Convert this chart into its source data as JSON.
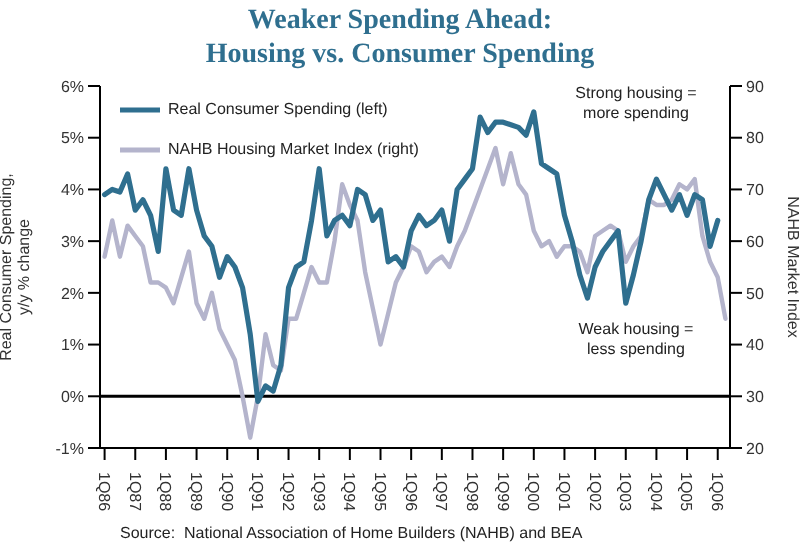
{
  "chart_data": {
    "type": "line",
    "title": "Weaker Spending Ahead:\nHousing vs. Consumer Spending",
    "ylabel": "Real Consumer Spending,\ny/y % change",
    "y2label": "NAHB Market Index",
    "categories": [
      "1Q86",
      null,
      null,
      null,
      "1Q87",
      null,
      null,
      null,
      "1Q88",
      null,
      null,
      null,
      "1Q89",
      null,
      null,
      null,
      "1Q90",
      null,
      null,
      null,
      "1Q91",
      null,
      null,
      null,
      "1Q92",
      null,
      null,
      null,
      "1Q93",
      null,
      null,
      null,
      "1Q94",
      null,
      null,
      null,
      "1Q95",
      null,
      null,
      null,
      "1Q96",
      null,
      null,
      null,
      "1Q97",
      null,
      null,
      null,
      "1Q98",
      null,
      null,
      null,
      "1Q99",
      null,
      null,
      null,
      "1Q00",
      null,
      null,
      null,
      "1Q01",
      null,
      null,
      null,
      "1Q02",
      null,
      null,
      null,
      "1Q03",
      null,
      null,
      null,
      "1Q04",
      null,
      null,
      null,
      "1Q05",
      null,
      null,
      null,
      "1Q06",
      null
    ],
    "ylim": [
      -1,
      6
    ],
    "yticks": [
      {
        "value": -1,
        "label": "-1%"
      },
      {
        "value": 0,
        "label": "0%"
      },
      {
        "value": 1,
        "label": "1%"
      },
      {
        "value": 2,
        "label": "2%"
      },
      {
        "value": 3,
        "label": "3%"
      },
      {
        "value": 4,
        "label": "4%"
      },
      {
        "value": 5,
        "label": "5%"
      },
      {
        "value": 6,
        "label": "6%"
      }
    ],
    "y2lim": [
      20,
      90
    ],
    "y2ticks": [
      20,
      30,
      40,
      50,
      60,
      70,
      80,
      90
    ],
    "legend": "top left",
    "ref_lines": [
      {
        "axis": "y",
        "value": 0,
        "color": "#000000"
      }
    ],
    "annotations": [
      "Strong housing =\nmore spending",
      "Weak housing =\nless spending",
      "Source:  National Association of Home Builders (NAHB) and BEA"
    ],
    "series": [
      {
        "name": "Real Consumer Spending (left)",
        "color": "#2f6f8f",
        "values": [
          3.9,
          4.0,
          3.95,
          4.3,
          3.6,
          3.8,
          3.5,
          2.8,
          4.4,
          3.6,
          3.5,
          4.4,
          3.6,
          3.1,
          2.9,
          2.3,
          2.7,
          2.5,
          2.1,
          1.2,
          -0.1,
          0.2,
          0.1,
          0.6,
          2.1,
          2.5,
          2.6,
          3.4,
          4.4,
          3.1,
          3.4,
          3.5,
          3.3,
          4.0,
          3.9,
          3.4,
          3.6,
          2.6,
          2.7,
          2.5,
          3.2,
          3.5,
          3.3,
          3.4,
          3.6,
          3.0,
          4.0,
          4.2,
          4.4,
          5.4,
          5.1,
          5.3,
          5.3,
          5.25,
          5.2,
          5.05,
          5.5,
          4.5,
          4.4,
          4.3,
          3.5,
          3.0,
          2.35,
          1.9,
          2.5,
          2.8,
          3.0,
          3.2,
          1.8,
          2.35,
          3.0,
          3.8,
          4.2,
          3.9,
          3.6,
          3.9,
          3.5,
          3.9,
          3.8,
          2.9,
          3.4,
          null
        ]
      },
      {
        "name": "NAHB Housing Market Index (right)",
        "color": "#b4b4cc",
        "axis": "y2",
        "values": [
          57,
          64,
          57,
          63,
          61,
          59,
          52,
          52,
          51,
          48,
          53,
          58,
          48,
          45,
          50,
          43,
          40,
          37,
          30,
          22,
          30,
          42,
          36,
          35,
          45,
          45,
          50,
          55,
          52,
          52,
          60,
          71,
          67,
          64,
          54,
          47,
          40,
          46,
          52,
          55,
          59,
          58,
          54,
          56,
          57,
          55,
          59,
          62,
          66,
          70,
          74,
          78,
          71,
          77,
          71,
          69,
          62,
          59,
          60,
          57,
          59,
          59,
          58,
          54,
          61,
          62,
          63,
          62,
          56,
          59,
          61,
          68,
          67,
          67,
          68,
          71,
          70,
          72,
          61,
          56,
          53,
          45
        ]
      }
    ]
  }
}
